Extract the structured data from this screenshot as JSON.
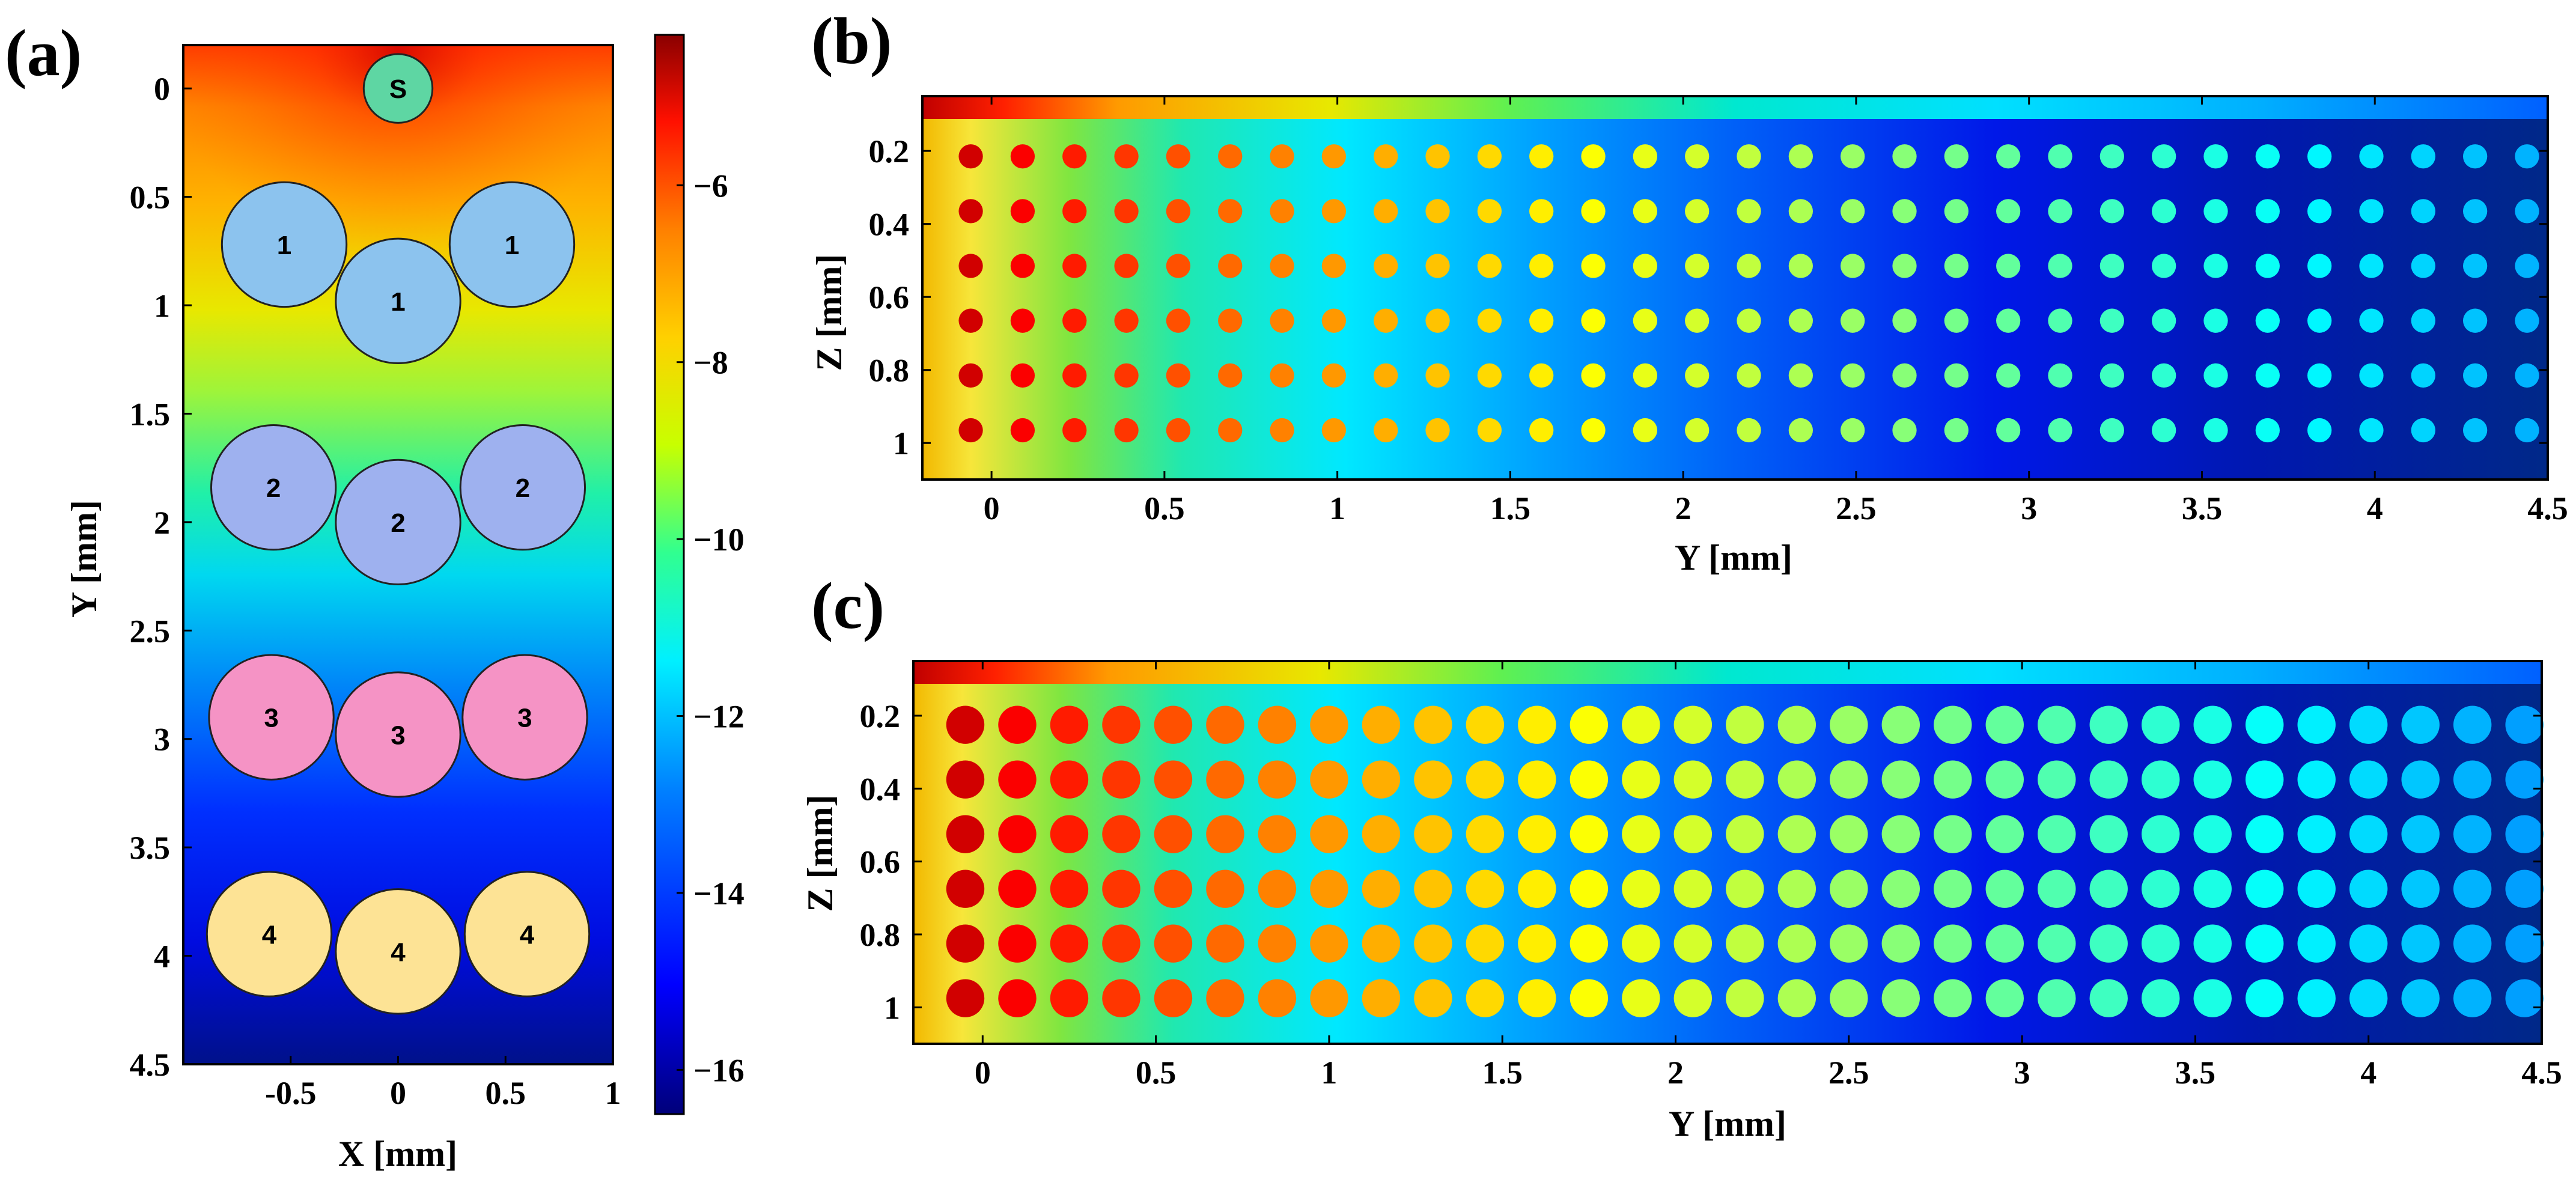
{
  "panels": {
    "a": {
      "label": "(a)"
    },
    "b": {
      "label": "(b)"
    },
    "c": {
      "label": "(c)"
    }
  },
  "chart_data": [
    {
      "type": "heatmap",
      "panel": "a",
      "xlabel": "X [mm]",
      "ylabel": "Y [mm]",
      "xlim": [
        -1,
        1
      ],
      "ylim": [
        4.5,
        -0.2
      ],
      "xticks": [
        "-0.5",
        "0",
        "0.5",
        "1"
      ],
      "xtick_values": [
        -0.5,
        0,
        0.5,
        1
      ],
      "yticks": [
        "0",
        "0.5",
        "1",
        "1.5",
        "2",
        "2.5",
        "3",
        "3.5",
        "4",
        "4.5"
      ],
      "ytick_values": [
        0,
        0.5,
        1,
        1.5,
        2,
        2.5,
        3,
        3.5,
        4,
        4.5
      ],
      "colorbar": {
        "range": [
          -16.5,
          -4.3
        ],
        "ticks": [
          "−6",
          "−8",
          "−10",
          "−12",
          "−14",
          "−16"
        ],
        "tick_values": [
          -6,
          -8,
          -10,
          -12,
          -14,
          -16
        ]
      },
      "source": {
        "label": "S",
        "x": 0,
        "y": 0,
        "r": 0.16,
        "color": "#5ed6a3"
      },
      "fibers": [
        {
          "label": "1",
          "x": -0.53,
          "y": 0.72,
          "r": 0.29,
          "color": "#8cc3ee"
        },
        {
          "label": "1",
          "x": 0.53,
          "y": 0.72,
          "r": 0.29,
          "color": "#8cc3ee"
        },
        {
          "label": "1",
          "x": 0,
          "y": 0.98,
          "r": 0.29,
          "color": "#8cc3ee"
        },
        {
          "label": "2",
          "x": -0.58,
          "y": 1.84,
          "r": 0.29,
          "color": "#9eb1ef"
        },
        {
          "label": "2",
          "x": 0.58,
          "y": 1.84,
          "r": 0.29,
          "color": "#9eb1ef"
        },
        {
          "label": "2",
          "x": 0,
          "y": 2.0,
          "r": 0.29,
          "color": "#9eb1ef"
        },
        {
          "label": "3",
          "x": -0.59,
          "y": 2.9,
          "r": 0.29,
          "color": "#f593c5"
        },
        {
          "label": "3",
          "x": 0.59,
          "y": 2.9,
          "r": 0.29,
          "color": "#f593c5"
        },
        {
          "label": "3",
          "x": 0,
          "y": 2.98,
          "r": 0.29,
          "color": "#f593c5"
        },
        {
          "label": "4",
          "x": -0.6,
          "y": 3.9,
          "r": 0.29,
          "color": "#fde395"
        },
        {
          "label": "4",
          "x": 0.6,
          "y": 3.9,
          "r": 0.29,
          "color": "#fde395"
        },
        {
          "label": "4",
          "x": 0,
          "y": 3.98,
          "r": 0.29,
          "color": "#fde395"
        }
      ]
    },
    {
      "type": "heatmap",
      "panel": "b",
      "xlabel": "Y [mm]",
      "ylabel": "Z [mm]",
      "xlim": [
        -0.2,
        4.5
      ],
      "ylim": [
        0.05,
        1.1
      ],
      "xticks": [
        "0",
        "0.5",
        "1",
        "1.5",
        "2",
        "2.5",
        "3",
        "3.5",
        "4",
        "4.5"
      ],
      "xtick_values": [
        0,
        0.5,
        1,
        1.5,
        2,
        2.5,
        3,
        3.5,
        4,
        4.5
      ],
      "yticks": [
        "0.2",
        "0.4",
        "0.6",
        "0.8",
        "1"
      ],
      "ytick_values": [
        0.2,
        0.4,
        0.6,
        0.8,
        1.0
      ],
      "dot_radius": 0.035,
      "dot_rows_z": [
        0.215,
        0.365,
        0.515,
        0.665,
        0.815,
        0.965
      ],
      "dot_cols_y": [
        -0.06,
        0.09,
        0.24,
        0.39,
        0.54,
        0.69,
        0.84,
        0.99,
        1.14,
        1.29,
        1.44,
        1.59,
        1.74,
        1.89,
        2.04,
        2.19,
        2.34,
        2.49,
        2.64,
        2.79,
        2.94,
        3.09,
        3.24,
        3.39,
        3.54,
        3.69,
        3.84,
        3.99,
        4.14,
        4.29,
        4.44
      ]
    },
    {
      "type": "heatmap",
      "panel": "c",
      "xlabel": "Y [mm]",
      "ylabel": "Z [mm]",
      "xlim": [
        -0.2,
        4.5
      ],
      "ylim": [
        0.05,
        1.1
      ],
      "xticks": [
        "0",
        "0.5",
        "1",
        "1.5",
        "2",
        "2.5",
        "3",
        "3.5",
        "4",
        "4.5"
      ],
      "xtick_values": [
        0,
        0.5,
        1,
        1.5,
        2,
        2.5,
        3,
        3.5,
        4,
        4.5
      ],
      "yticks": [
        "0.2",
        "0.4",
        "0.6",
        "0.8",
        "1"
      ],
      "ytick_values": [
        0.2,
        0.4,
        0.6,
        0.8,
        1.0
      ],
      "dot_radius": 0.055,
      "dot_rows_z": [
        0.225,
        0.375,
        0.525,
        0.675,
        0.825,
        0.975
      ],
      "dot_cols_y": [
        -0.05,
        0.1,
        0.25,
        0.4,
        0.55,
        0.7,
        0.85,
        1.0,
        1.15,
        1.3,
        1.45,
        1.6,
        1.75,
        1.9,
        2.05,
        2.2,
        2.35,
        2.5,
        2.65,
        2.8,
        2.95,
        3.1,
        3.25,
        3.4,
        3.55,
        3.7,
        3.85,
        4.0,
        4.15,
        4.3,
        4.45
      ]
    }
  ]
}
